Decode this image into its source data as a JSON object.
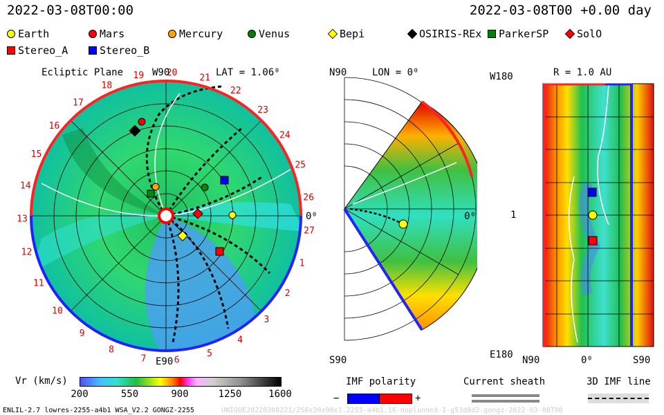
{
  "header": {
    "left_time": "2022-03-08T00:00",
    "right_time": "2022-03-08T00 +0.00 day"
  },
  "legend": [
    {
      "label": "Earth",
      "color": "#ffff00",
      "shape": "circle"
    },
    {
      "label": "Mars",
      "color": "#ff0000",
      "shape": "circle"
    },
    {
      "label": "Mercury",
      "color": "#ffa500",
      "shape": "circle"
    },
    {
      "label": "Venus",
      "color": "#008000",
      "shape": "circle"
    },
    {
      "label": "Bepi",
      "color": "#ffff00",
      "shape": "diamond"
    },
    {
      "label": "OSIRIS-REx",
      "color": "#000000",
      "shape": "diamond"
    },
    {
      "label": "ParkerSP",
      "color": "#008000",
      "shape": "square"
    },
    {
      "label": "SolO",
      "color": "#ff0000",
      "shape": "diamond"
    },
    {
      "label": "Stereo_A",
      "color": "#ff0000",
      "shape": "square"
    },
    {
      "label": "Stereo_B",
      "color": "#0000ff",
      "shape": "square"
    }
  ],
  "panels": {
    "ecliptic": {
      "title": "Ecliptic Plane",
      "top": "W90",
      "bottom": "E90",
      "right": "0⁰",
      "lat": "LAT = 1.06⁰",
      "carrington": [
        "19",
        "20",
        "21",
        "22",
        "23",
        "24",
        "25",
        "26",
        "27",
        "1",
        "2",
        "3",
        "4",
        "5",
        "6",
        "7",
        "8",
        "9",
        "10",
        "11",
        "12",
        "13",
        "14",
        "15",
        "16",
        "17",
        "18"
      ]
    },
    "meridional": {
      "top": "N90",
      "bottom": "S90",
      "lon": "LON = 0⁰",
      "right": "0⁰"
    },
    "radial": {
      "top": "W180",
      "bottom": "E180",
      "title": "R = 1.0 AU",
      "mid": "1",
      "x_left": "N90",
      "x_mid": "0⁰",
      "x_right": "S90"
    }
  },
  "colorbar": {
    "label": "Vr (km/s)",
    "ticks": [
      "200",
      "550",
      "900",
      "1250",
      "1600"
    ]
  },
  "imf": {
    "label": "IMF polarity",
    "minus": "−",
    "plus": "+",
    "sheath": "Current sheath",
    "line3d": "3D IMF line"
  },
  "footer": {
    "left": "ENLIL-2.7 lowres-2255-a4b1 WSA_V2.2 GONGZ-2255",
    "right": "UNIQUE20220308221/256x30x90x1.2255-a4b1.16-noplunned-1-g53d8d2.gongz-2022-03-08T00"
  }
}
